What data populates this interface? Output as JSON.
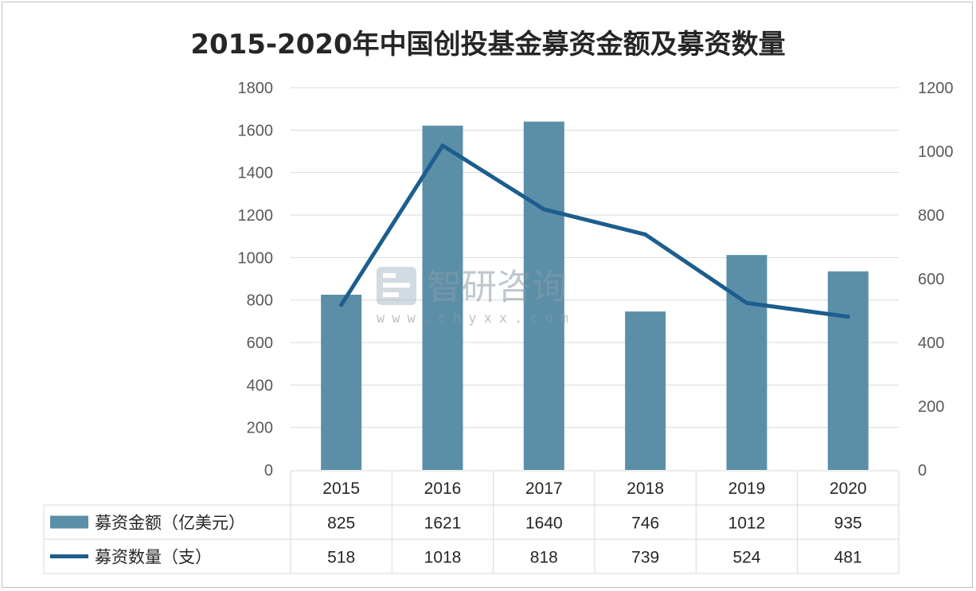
{
  "chart_data": {
    "type": "bar",
    "title": "2015-2020年中国创投基金募资金额及募资数量",
    "categories": [
      "2015",
      "2016",
      "2017",
      "2018",
      "2019",
      "2020"
    ],
    "series": [
      {
        "name": "募资金额（亿美元）",
        "type": "bar",
        "axis": "left",
        "values": [
          825,
          1621,
          1640,
          746,
          1012,
          935
        ],
        "labels": [
          "825",
          "1621",
          "1640",
          "746",
          "1012",
          "935"
        ]
      },
      {
        "name": "募资数量（支）",
        "type": "line",
        "axis": "right",
        "values": [
          518,
          1018,
          818,
          739,
          524,
          481
        ],
        "labels": [
          "518",
          "1018",
          "818",
          "739",
          "524",
          "481"
        ]
      }
    ],
    "y_left": {
      "ylim": [
        0,
        1800
      ],
      "ticks": [
        "0",
        "200",
        "400",
        "600",
        "800",
        "1000",
        "1200",
        "1400",
        "1600",
        "1800"
      ]
    },
    "y_right": {
      "ylim": [
        0,
        1200
      ],
      "ticks": [
        "0",
        "200",
        "400",
        "600",
        "800",
        "1000",
        "1200"
      ]
    },
    "grid": true,
    "legend": "data-table-below",
    "colors": {
      "bar": "#5b8fa8",
      "line": "#1c5e8e",
      "grid": "#d9d9d9",
      "table_border": "#d9d9d9"
    }
  },
  "watermark": {
    "brand": "智研咨询",
    "url": "www.chyxx.com"
  }
}
